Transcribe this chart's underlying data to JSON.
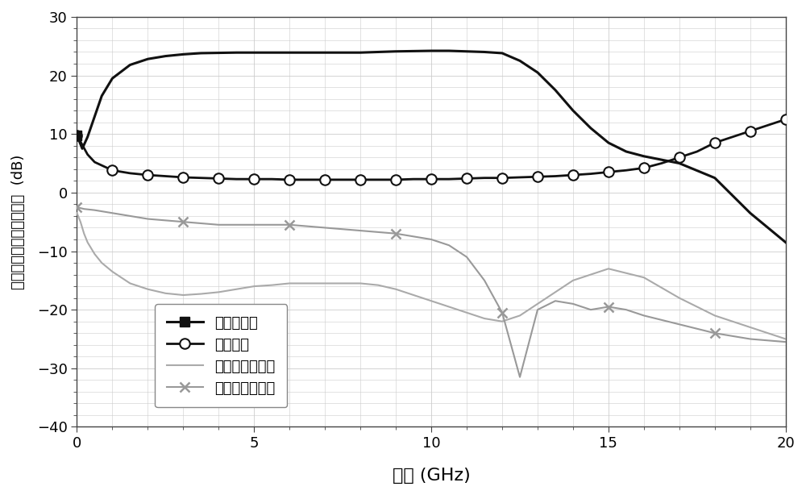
{
  "title": "",
  "xlabel": "频率 (GHz)",
  "ylabel": "增益，噪声以及回波损耗  (dB)",
  "xlim": [
    0,
    20
  ],
  "ylim": [
    -40,
    30
  ],
  "xticks": [
    0,
    5,
    10,
    15,
    20
  ],
  "yticks": [
    -40,
    -30,
    -20,
    -10,
    0,
    10,
    20,
    30
  ],
  "background_color": "#ffffff",
  "grid_color": "#cccccc",
  "legend_labels": [
    "小信号增益",
    "噪声系数",
    "输入端回波损耗",
    "输出端回波损耗"
  ],
  "gain_color": "#111111",
  "noise_color": "#111111",
  "s11_color": "#aaaaaa",
  "s22_color": "#999999",
  "gain_x": [
    0,
    0.15,
    0.3,
    0.5,
    0.7,
    1.0,
    1.5,
    2.0,
    2.5,
    3.0,
    3.5,
    4.0,
    4.5,
    5.0,
    5.5,
    6.0,
    7.0,
    8.0,
    9.0,
    10.0,
    10.5,
    11.0,
    11.5,
    12.0,
    12.5,
    13.0,
    13.5,
    14.0,
    14.5,
    15.0,
    15.5,
    16.0,
    17.0,
    18.0,
    19.0,
    20.0
  ],
  "gain_y": [
    9.8,
    7.5,
    9.5,
    13.0,
    16.5,
    19.5,
    21.8,
    22.8,
    23.3,
    23.6,
    23.8,
    23.85,
    23.9,
    23.9,
    23.9,
    23.9,
    23.9,
    23.9,
    24.1,
    24.2,
    24.2,
    24.1,
    24.0,
    23.8,
    22.5,
    20.5,
    17.5,
    14.0,
    11.0,
    8.5,
    7.0,
    6.2,
    5.0,
    2.5,
    -3.5,
    -8.5
  ],
  "noise_x": [
    0,
    0.3,
    0.5,
    1.0,
    1.5,
    2.0,
    2.5,
    3.0,
    3.5,
    4.0,
    4.5,
    5.0,
    5.5,
    6.0,
    6.5,
    7.0,
    7.5,
    8.0,
    8.5,
    9.0,
    9.5,
    10.0,
    10.5,
    11.0,
    11.5,
    12.0,
    12.5,
    13.0,
    13.5,
    14.0,
    14.5,
    15.0,
    15.5,
    16.0,
    16.5,
    17.0,
    17.5,
    18.0,
    18.5,
    19.0,
    19.5,
    20.0
  ],
  "noise_y": [
    9.8,
    6.5,
    5.2,
    3.8,
    3.3,
    3.0,
    2.8,
    2.6,
    2.5,
    2.4,
    2.3,
    2.3,
    2.3,
    2.2,
    2.2,
    2.2,
    2.2,
    2.2,
    2.2,
    2.2,
    2.3,
    2.3,
    2.3,
    2.4,
    2.5,
    2.5,
    2.6,
    2.7,
    2.8,
    3.0,
    3.2,
    3.5,
    3.8,
    4.2,
    5.0,
    6.0,
    7.0,
    8.5,
    9.5,
    10.5,
    11.5,
    12.5
  ],
  "s11_x": [
    0,
    0.1,
    0.2,
    0.3,
    0.5,
    0.7,
    1.0,
    1.5,
    2.0,
    2.5,
    3.0,
    3.5,
    4.0,
    4.5,
    5.0,
    5.5,
    6.0,
    6.5,
    7.0,
    7.5,
    8.0,
    8.5,
    9.0,
    9.5,
    10.0,
    10.5,
    11.0,
    11.5,
    12.0,
    12.5,
    13.0,
    14.0,
    15.0,
    16.0,
    17.0,
    18.0,
    19.0,
    20.0
  ],
  "s11_y": [
    -3.5,
    -5.0,
    -7.0,
    -8.5,
    -10.5,
    -12.0,
    -13.5,
    -15.5,
    -16.5,
    -17.2,
    -17.5,
    -17.3,
    -17.0,
    -16.5,
    -16.0,
    -15.8,
    -15.5,
    -15.5,
    -15.5,
    -15.5,
    -15.5,
    -15.8,
    -16.5,
    -17.5,
    -18.5,
    -19.5,
    -20.5,
    -21.5,
    -22.0,
    -21.0,
    -19.0,
    -15.0,
    -13.0,
    -14.5,
    -18.0,
    -21.0,
    -23.0,
    -25.0
  ],
  "s22_x": [
    0,
    0.2,
    0.5,
    1.0,
    1.5,
    2.0,
    3.0,
    4.0,
    5.0,
    6.0,
    7.0,
    8.0,
    9.0,
    10.0,
    10.5,
    11.0,
    11.5,
    12.0,
    12.5,
    13.0,
    13.5,
    14.0,
    14.5,
    15.0,
    15.5,
    16.0,
    17.0,
    18.0,
    19.0,
    20.0
  ],
  "s22_y": [
    -2.5,
    -2.8,
    -3.0,
    -3.5,
    -4.0,
    -4.5,
    -5.0,
    -5.5,
    -5.5,
    -5.5,
    -6.0,
    -6.5,
    -7.0,
    -8.0,
    -9.0,
    -11.0,
    -15.0,
    -20.5,
    -31.5,
    -20.0,
    -18.5,
    -19.0,
    -20.0,
    -19.5,
    -20.0,
    -21.0,
    -22.5,
    -24.0,
    -25.0,
    -25.5
  ],
  "noise_marker_x": [
    0,
    1.0,
    2.0,
    3.0,
    4.0,
    5.0,
    6.0,
    7.0,
    8.0,
    9.0,
    10.0,
    11.0,
    12.0,
    13.0,
    14.0,
    15.0,
    16.0,
    17.0,
    18.0,
    19.0,
    20.0
  ],
  "noise_marker_y": [
    9.8,
    3.8,
    3.0,
    2.6,
    2.4,
    2.3,
    2.2,
    2.2,
    2.2,
    2.2,
    2.3,
    2.4,
    2.5,
    2.7,
    3.0,
    3.5,
    4.2,
    6.0,
    8.5,
    10.5,
    12.5
  ],
  "s22_marker_x": [
    0,
    3.0,
    6.0,
    9.0,
    12.0,
    15.0,
    18.0
  ],
  "s22_marker_y": [
    -2.5,
    -5.0,
    -5.5,
    -7.0,
    -20.5,
    -19.5,
    -24.0
  ]
}
